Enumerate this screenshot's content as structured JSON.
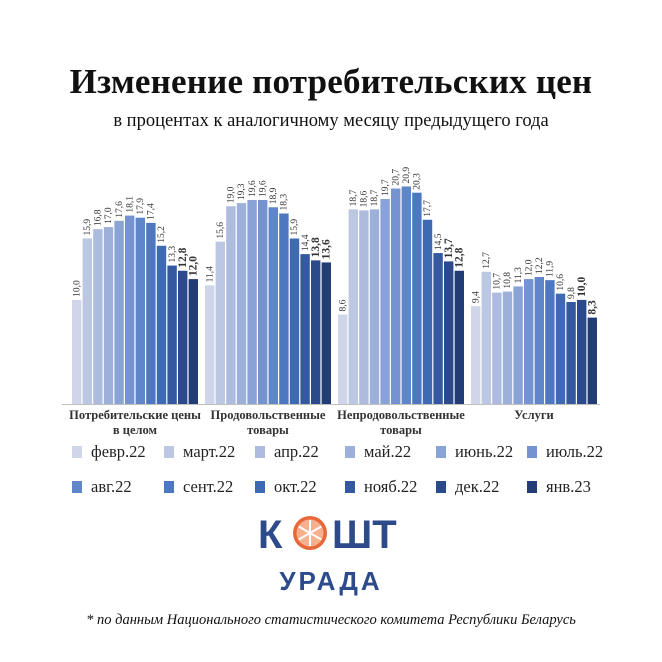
{
  "title": "Изменение потребительских цен",
  "subtitle": "в процентах к аналогичному месяцу предыдущего года",
  "logo": {
    "top_text": "КОШТ",
    "bottom_text": "УРАДА"
  },
  "footnote": "* по данным Национального статистического комитета Республики Беларусь",
  "colors": {
    "series": [
      "#cfd6ea",
      "#bcc7e4",
      "#adbcde",
      "#9cb0da",
      "#8aa3d6",
      "#7493d0",
      "#5f86c9",
      "#4d77c0",
      "#3e6ab4",
      "#3459a1",
      "#2a4a8c",
      "#223c76"
    ],
    "text": "#222222",
    "logo": "#2d4a8a",
    "logo_accent": "#e8683a"
  },
  "chart_data": {
    "type": "bar",
    "categories": [
      [
        "Потребительские цены",
        "в целом"
      ],
      [
        "Продовольственные",
        "товары"
      ],
      [
        "Непродовольственные",
        "товары"
      ],
      [
        "Услуги"
      ]
    ],
    "series": [
      {
        "name": "февр.22",
        "values": [
          10.0,
          11.4,
          8.6,
          9.4
        ]
      },
      {
        "name": "март.22",
        "values": [
          15.9,
          15.6,
          18.7,
          12.7
        ]
      },
      {
        "name": "апр.22",
        "values": [
          16.8,
          19.0,
          18.6,
          10.7
        ]
      },
      {
        "name": "май.22",
        "values": [
          17.0,
          19.3,
          18.7,
          10.8
        ]
      },
      {
        "name": "июнь.22",
        "values": [
          17.6,
          19.6,
          19.7,
          11.3
        ]
      },
      {
        "name": "июль.22",
        "values": [
          18.1,
          19.6,
          20.7,
          12.0
        ]
      },
      {
        "name": "авг.22",
        "values": [
          17.9,
          18.9,
          20.9,
          12.2
        ]
      },
      {
        "name": "сент.22",
        "values": [
          17.4,
          18.3,
          20.3,
          11.9
        ]
      },
      {
        "name": "окт.22",
        "values": [
          15.2,
          15.9,
          17.7,
          10.6
        ]
      },
      {
        "name": "нояб.22",
        "values": [
          13.3,
          14.4,
          14.5,
          9.8
        ]
      },
      {
        "name": "дек.22",
        "values": [
          12.8,
          13.8,
          13.7,
          10.0
        ]
      },
      {
        "name": "янв.23",
        "values": [
          12.0,
          13.6,
          12.8,
          8.3
        ]
      }
    ],
    "ylim": [
      0,
      22
    ],
    "grid": false,
    "legend": "bottom"
  }
}
